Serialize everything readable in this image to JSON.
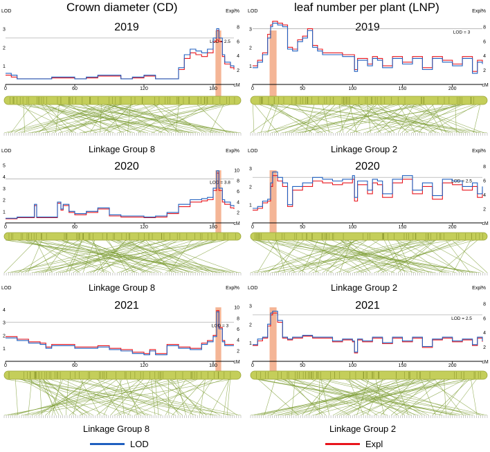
{
  "headers": {
    "left": "Crown diameter (CD)",
    "right": "leaf number per plant (LNP)"
  },
  "linkage_labels": {
    "left": "Linkage Group 8",
    "right": "Linkage Group 2"
  },
  "legend": {
    "lod_label": "LOD",
    "expl_label": "Expl",
    "lod_color": "#1f5fbf",
    "expl_color": "#e8141c"
  },
  "colors": {
    "highlight": "#f0956a",
    "chromosome": "#c4ce5a",
    "markers": "#7d9d34"
  },
  "chart_data": [
    {
      "type": "line",
      "trait": "CD",
      "year": "2019",
      "linkage_group": "Linkage Group 8",
      "xlim": [
        0,
        198
      ],
      "xticks": [
        0,
        60,
        120,
        180
      ],
      "xlabel": "cM",
      "ylim": [
        0,
        3.5
      ],
      "yticks": [
        1,
        2,
        3
      ],
      "ylabel": "LOD",
      "y2lim": [
        0,
        9
      ],
      "y2ticks": [
        2,
        4,
        6,
        8
      ],
      "y2label": "Expl%",
      "threshold": 2.5,
      "threshold_label": "LOD = 2.5",
      "highlight": [
        182,
        187
      ],
      "x": [
        0,
        5,
        10,
        20,
        30,
        40,
        50,
        60,
        70,
        80,
        90,
        100,
        110,
        120,
        130,
        140,
        150,
        155,
        160,
        165,
        170,
        175,
        180,
        183,
        185,
        188,
        190,
        195,
        198
      ],
      "series": [
        {
          "name": "LOD",
          "values": [
            0.6,
            0.5,
            0.3,
            0.3,
            0.3,
            0.4,
            0.4,
            0.3,
            0.4,
            0.5,
            0.5,
            0.3,
            0.4,
            0.5,
            0.3,
            0.3,
            0.9,
            1.6,
            1.9,
            1.8,
            1.7,
            1.9,
            2.5,
            3.0,
            2.5,
            1.6,
            1.2,
            1.0,
            0.9
          ]
        },
        {
          "name": "Expl",
          "values": [
            0.5,
            0.4,
            0.3,
            0.3,
            0.3,
            0.35,
            0.35,
            0.3,
            0.35,
            0.45,
            0.45,
            0.3,
            0.35,
            0.45,
            0.3,
            0.3,
            0.8,
            1.4,
            1.7,
            1.6,
            1.5,
            1.7,
            2.3,
            2.9,
            2.3,
            1.5,
            1.1,
            0.9,
            0.8
          ]
        }
      ]
    },
    {
      "type": "line",
      "trait": "LNP",
      "year": "2019",
      "linkage_group": "Linkage Group 2",
      "xlim": [
        0,
        230
      ],
      "xticks": [
        0,
        50,
        100,
        150,
        200
      ],
      "xlabel": "cM",
      "ylim": [
        0,
        3.5
      ],
      "yticks": [
        1,
        2,
        3
      ],
      "ylabel": "LOD",
      "y2lim": [
        0,
        9
      ],
      "y2ticks": [
        2,
        4,
        6,
        8
      ],
      "y2label": "Expl%",
      "threshold": 3.0,
      "threshold_label": "LOD = 3",
      "highlight": [
        17,
        24
      ],
      "x": [
        0,
        5,
        10,
        15,
        18,
        20,
        25,
        30,
        35,
        40,
        45,
        50,
        55,
        60,
        65,
        70,
        80,
        90,
        100,
        102,
        105,
        110,
        115,
        120,
        125,
        130,
        140,
        150,
        160,
        170,
        180,
        190,
        200,
        210,
        220,
        225,
        230
      ],
      "series": [
        {
          "name": "LOD",
          "values": [
            0.9,
            1.2,
            1.6,
            2.5,
            3.1,
            3.3,
            3.2,
            3.1,
            1.9,
            1.8,
            2.3,
            2.5,
            2.9,
            2.0,
            1.8,
            1.6,
            1.6,
            1.5,
            1.5,
            0.7,
            1.3,
            1.3,
            1.0,
            1.4,
            1.3,
            0.9,
            1.4,
            1.1,
            1.4,
            0.8,
            1.4,
            1.2,
            1.0,
            1.4,
            0.6,
            1.2,
            1.1
          ]
        },
        {
          "name": "Expl",
          "values": [
            1.0,
            1.3,
            1.7,
            2.7,
            3.2,
            3.4,
            3.3,
            3.2,
            2.0,
            1.9,
            2.4,
            2.6,
            3.0,
            2.1,
            1.9,
            1.7,
            1.7,
            1.6,
            1.6,
            0.8,
            1.4,
            1.4,
            1.1,
            1.5,
            1.4,
            1.0,
            1.5,
            1.2,
            1.5,
            0.9,
            1.5,
            1.3,
            1.1,
            1.5,
            0.7,
            1.3,
            1.2
          ]
        }
      ]
    },
    {
      "type": "line",
      "trait": "CD",
      "year": "2020",
      "linkage_group": "Linkage Group 8",
      "xlim": [
        0,
        198
      ],
      "xticks": [
        0,
        60,
        120,
        180
      ],
      "xlabel": "cM",
      "ylim": [
        0,
        5.5
      ],
      "yticks": [
        1,
        2,
        3,
        4,
        5
      ],
      "ylabel": "LOD",
      "y2lim": [
        0,
        12
      ],
      "y2ticks": [
        2,
        4,
        6,
        8,
        10
      ],
      "y2label": "Expl%",
      "threshold": 3.8,
      "threshold_label": "LOD = 3.8",
      "highlight": [
        182,
        187
      ],
      "x": [
        0,
        10,
        20,
        25,
        27,
        30,
        40,
        45,
        48,
        50,
        55,
        60,
        70,
        80,
        90,
        100,
        110,
        120,
        130,
        140,
        150,
        160,
        170,
        175,
        180,
        183,
        185,
        188,
        190,
        195,
        198
      ],
      "series": [
        {
          "name": "LOD",
          "values": [
            0.4,
            0.5,
            0.5,
            1.6,
            0.5,
            0.5,
            0.5,
            1.8,
            1.2,
            1.6,
            1.0,
            0.8,
            1.0,
            1.3,
            0.7,
            0.6,
            0.6,
            0.5,
            0.6,
            0.9,
            1.6,
            2.0,
            2.1,
            2.2,
            3.0,
            4.5,
            3.0,
            2.0,
            1.8,
            1.5,
            1.4
          ]
        },
        {
          "name": "Expl",
          "values": [
            0.35,
            0.45,
            0.45,
            1.5,
            0.45,
            0.45,
            0.45,
            1.7,
            1.1,
            1.5,
            0.9,
            0.7,
            0.9,
            1.2,
            0.6,
            0.5,
            0.5,
            0.45,
            0.5,
            0.8,
            1.4,
            1.8,
            1.9,
            2.0,
            2.8,
            4.3,
            2.8,
            1.8,
            1.6,
            1.3,
            1.2
          ]
        }
      ]
    },
    {
      "type": "line",
      "trait": "LNP",
      "year": "2020",
      "linkage_group": "Linkage Group 2",
      "xlim": [
        0,
        230
      ],
      "xticks": [
        0,
        50,
        100,
        150,
        200
      ],
      "xlabel": "cM",
      "ylim": [
        0,
        3.5
      ],
      "yticks": [
        1,
        2,
        3
      ],
      "ylabel": "LOD",
      "y2lim": [
        0,
        9
      ],
      "y2ticks": [
        2,
        4,
        6,
        8
      ],
      "y2label": "Expl%",
      "threshold": 2.5,
      "threshold_label": "LOD = 2.5",
      "highlight": [
        17,
        24
      ],
      "x": [
        0,
        5,
        10,
        15,
        18,
        20,
        25,
        30,
        35,
        40,
        50,
        60,
        70,
        80,
        90,
        100,
        102,
        105,
        110,
        115,
        120,
        125,
        130,
        140,
        150,
        160,
        170,
        180,
        190,
        200,
        210,
        220,
        225,
        230
      ],
      "series": [
        {
          "name": "LOD",
          "values": [
            0.8,
            0.9,
            1.2,
            1.3,
            2.2,
            2.8,
            2.5,
            2.2,
            1.0,
            2.0,
            2.2,
            2.5,
            2.4,
            2.3,
            2.4,
            2.6,
            1.4,
            2.3,
            2.3,
            1.8,
            2.4,
            2.3,
            1.6,
            2.4,
            2.6,
            1.8,
            2.2,
            1.5,
            2.4,
            2.3,
            2.0,
            2.2,
            1.6,
            2.0
          ]
        },
        {
          "name": "Expl",
          "values": [
            0.7,
            0.8,
            1.1,
            1.2,
            2.0,
            2.6,
            2.3,
            2.0,
            0.9,
            1.8,
            2.0,
            2.3,
            2.2,
            2.1,
            2.2,
            2.4,
            1.2,
            2.1,
            2.1,
            1.6,
            2.2,
            2.1,
            1.4,
            2.2,
            2.4,
            1.6,
            2.0,
            1.3,
            2.2,
            2.1,
            1.8,
            2.0,
            1.4,
            1.8
          ]
        }
      ]
    },
    {
      "type": "line",
      "trait": "CD",
      "year": "2021",
      "linkage_group": "Linkage Group 8",
      "xlim": [
        0,
        198
      ],
      "xticks": [
        0,
        60,
        120,
        180
      ],
      "xlabel": "cM",
      "ylim": [
        0,
        5
      ],
      "yticks": [
        1,
        2,
        3,
        4
      ],
      "ylabel": "LOD",
      "y2lim": [
        0,
        12
      ],
      "y2ticks": [
        2,
        4,
        6,
        8,
        10
      ],
      "y2label": "Expl%",
      "threshold": 3.0,
      "threshold_label": "LOD = 3",
      "highlight": [
        182,
        187
      ],
      "x": [
        0,
        10,
        20,
        30,
        35,
        40,
        50,
        60,
        70,
        80,
        90,
        100,
        110,
        120,
        125,
        130,
        140,
        150,
        160,
        170,
        175,
        180,
        183,
        185,
        188,
        190,
        195,
        198
      ],
      "series": [
        {
          "name": "LOD",
          "values": [
            1.8,
            1.6,
            1.4,
            1.3,
            1.0,
            1.2,
            1.2,
            1.0,
            1.0,
            1.1,
            0.9,
            0.8,
            0.6,
            0.5,
            0.8,
            0.5,
            1.2,
            1.0,
            0.9,
            1.3,
            1.5,
            1.9,
            3.8,
            2.5,
            1.5,
            1.2,
            1.2,
            1.2
          ]
        },
        {
          "name": "Expl",
          "values": [
            1.9,
            1.7,
            1.5,
            1.4,
            1.1,
            1.3,
            1.3,
            1.1,
            1.1,
            1.2,
            1.0,
            0.9,
            0.7,
            0.6,
            0.9,
            0.6,
            1.3,
            1.1,
            1.0,
            1.4,
            1.6,
            2.0,
            3.9,
            2.6,
            1.6,
            1.3,
            1.3,
            1.3
          ]
        }
      ]
    },
    {
      "type": "line",
      "trait": "LNP",
      "year": "2021",
      "linkage_group": "Linkage Group 2",
      "xlim": [
        0,
        230
      ],
      "xticks": [
        0,
        50,
        100,
        150,
        200
      ],
      "xlabel": "cM",
      "ylim": [
        0,
        3.5
      ],
      "yticks": [
        1,
        2,
        3
      ],
      "ylabel": "LOD",
      "y2lim": [
        0,
        9
      ],
      "y2ticks": [
        2,
        4,
        6,
        8
      ],
      "y2label": "Expl%",
      "threshold": 2.5,
      "threshold_label": "LOD = 2.5",
      "highlight": [
        17,
        24
      ],
      "x": [
        0,
        5,
        10,
        15,
        18,
        20,
        25,
        30,
        35,
        40,
        50,
        60,
        70,
        80,
        90,
        100,
        102,
        105,
        110,
        120,
        130,
        140,
        150,
        160,
        170,
        180,
        190,
        200,
        210,
        220,
        225,
        230
      ],
      "series": [
        {
          "name": "LOD",
          "values": [
            0.9,
            1.2,
            1.3,
            2.0,
            2.6,
            2.7,
            2.2,
            1.3,
            1.2,
            1.3,
            1.4,
            1.3,
            1.3,
            1.1,
            1.2,
            1.1,
            0.5,
            1.2,
            1.1,
            1.3,
            1.0,
            1.3,
            1.1,
            1.3,
            0.8,
            1.2,
            1.3,
            1.1,
            1.2,
            0.9,
            1.3,
            1.1
          ]
        },
        {
          "name": "Expl",
          "values": [
            0.85,
            1.1,
            1.25,
            1.9,
            2.5,
            2.6,
            2.1,
            1.25,
            1.15,
            1.25,
            1.35,
            1.25,
            1.25,
            1.05,
            1.15,
            1.05,
            0.45,
            1.15,
            1.05,
            1.25,
            0.95,
            1.25,
            1.05,
            1.25,
            0.75,
            1.15,
            1.25,
            1.05,
            1.15,
            0.85,
            1.25,
            1.05
          ]
        }
      ]
    }
  ]
}
